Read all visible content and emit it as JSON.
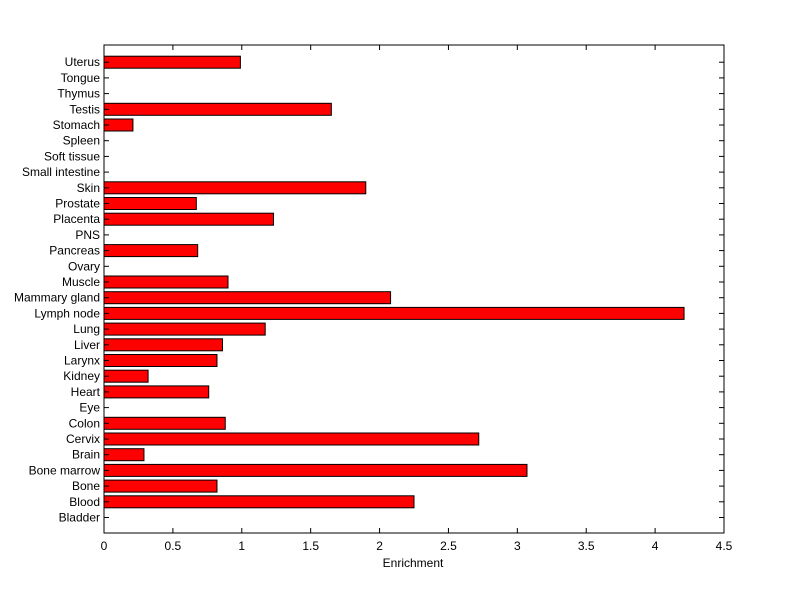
{
  "chart_data": {
    "type": "bar",
    "orientation": "horizontal",
    "title": "",
    "xlabel": "Enrichment",
    "ylabel": "",
    "xlim": [
      0,
      4.5
    ],
    "xticks": [
      "0",
      "0.5",
      "1",
      "1.5",
      "2",
      "2.5",
      "3",
      "3.5",
      "4",
      "4.5"
    ],
    "grid": false,
    "bar_color": "#ff0000",
    "categories": [
      "Bladder",
      "Blood",
      "Bone",
      "Bone marrow",
      "Brain",
      "Cervix",
      "Colon",
      "Eye",
      "Heart",
      "Kidney",
      "Larynx",
      "Liver",
      "Lung",
      "Lymph node",
      "Mammary gland",
      "Muscle",
      "Ovary",
      "Pancreas",
      "PNS",
      "Placenta",
      "Prostate",
      "Skin",
      "Small intestine",
      "Soft tissue",
      "Spleen",
      "Stomach",
      "Testis",
      "Thymus",
      "Tongue",
      "Uterus"
    ],
    "values": [
      0,
      2.25,
      0.82,
      3.07,
      0.29,
      2.72,
      0.88,
      0,
      0.76,
      0.32,
      0.82,
      0.86,
      1.17,
      4.21,
      2.08,
      0.9,
      0,
      0.68,
      0,
      1.23,
      0.67,
      1.9,
      0,
      0,
      0,
      0.21,
      1.65,
      0,
      0,
      0.99
    ]
  }
}
